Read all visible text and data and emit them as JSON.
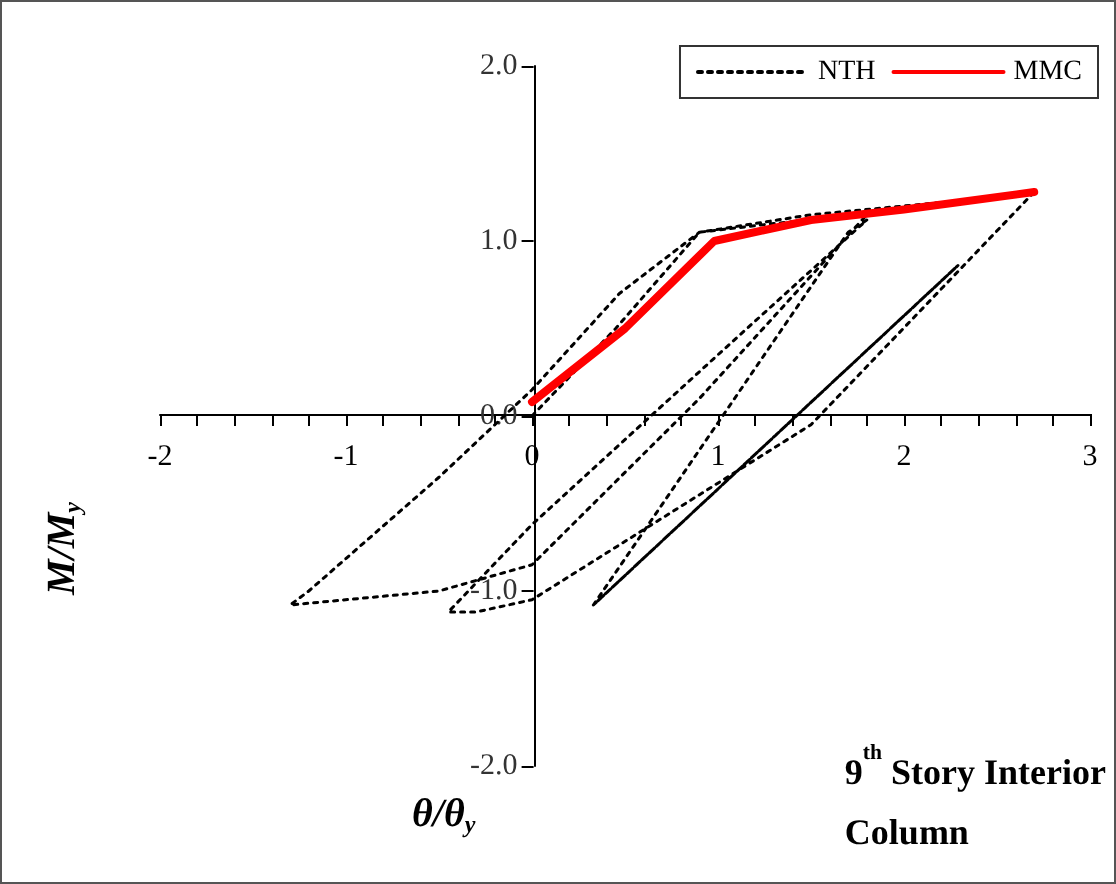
{
  "chart_data": {
    "type": "line",
    "xlabel": "θ/θ$_{y}$",
    "ylabel": "M/M$_{y}$",
    "annotations": [
      "9$^{th}$ Story Interior Column"
    ],
    "xlim": [
      -2,
      3
    ],
    "xticks": [
      -2,
      -1,
      0,
      1,
      2,
      3
    ],
    "ylim": [
      -2,
      2
    ],
    "yticks": [
      {
        "value": -2,
        "label": "-2.0"
      },
      {
        "value": -1,
        "label": "-1.0"
      },
      {
        "value": 0,
        "label": "0.0"
      },
      {
        "value": 1,
        "label": "1.0"
      },
      {
        "value": 2,
        "label": "2.0"
      }
    ],
    "legend": "top right",
    "marker": "none",
    "series": [
      {
        "name": "NTH",
        "color": "#000000",
        "line_style": "dotted",
        "x": [
          0,
          0.45,
          0.9,
          1.3,
          1.8,
          0.9,
          0,
          -0.5,
          -1.3,
          -1.2,
          -0.5,
          0,
          0.47,
          0.9,
          1.5,
          2.2,
          2.7,
          1.5,
          0,
          -0.3,
          -0.45,
          0,
          1.0,
          1.8,
          1.7,
          0.33,
          2.29,
          0.33,
          2.29
        ],
        "values": [
          0,
          0.5,
          1.05,
          1.1,
          1.15,
          0.1,
          -0.85,
          -1.0,
          -1.08,
          -1.0,
          -0.35,
          0.15,
          0.7,
          1.05,
          1.15,
          1.22,
          1.28,
          -0.05,
          -1.05,
          -1.12,
          -1.12,
          -0.62,
          0.35,
          1.12,
          1.05,
          -1.08,
          0.86,
          -1.08,
          0.86
        ]
      },
      {
        "name": "MMC",
        "color": "#ff0000",
        "line_style": "solid",
        "x": [
          0,
          0.5,
          0.98,
          1.5,
          2.0,
          2.7
        ],
        "values": [
          0.08,
          0.5,
          1.0,
          1.12,
          1.18,
          1.28
        ]
      }
    ]
  }
}
